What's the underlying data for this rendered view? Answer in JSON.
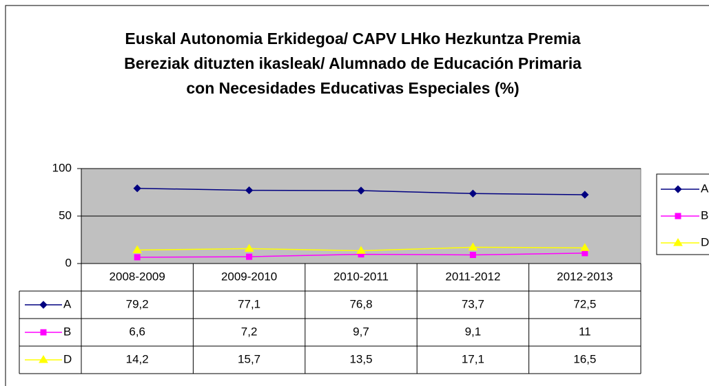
{
  "chart_data": {
    "type": "line",
    "title": "Euskal Autonomia Erkidegoa/ CAPV LHko Hezkuntza Premia Bereziak dituzten ikasleak/ Alumnado de Educación Primaria con Necesidades Educativas Especiales (%)",
    "categories": [
      "2008-2009",
      "2009-2010",
      "2010-2011",
      "2011-2012",
      "2012-2013"
    ],
    "series": [
      {
        "name": "A",
        "color": "#000080",
        "marker": "diamond",
        "values": [
          79.2,
          77.1,
          76.8,
          73.7,
          72.5
        ],
        "value_labels": [
          "79,2",
          "77,1",
          "76,8",
          "73,7",
          "72,5"
        ]
      },
      {
        "name": "B",
        "color": "#ff00ff",
        "marker": "square",
        "values": [
          6.6,
          7.2,
          9.7,
          9.1,
          11
        ],
        "value_labels": [
          "6,6",
          "7,2",
          "9,7",
          "9,1",
          "11"
        ]
      },
      {
        "name": "D",
        "color": "#ffff00",
        "marker": "triangle",
        "values": [
          14.2,
          15.7,
          13.5,
          17.1,
          16.5
        ],
        "value_labels": [
          "14,2",
          "15,7",
          "13,5",
          "17,1",
          "16,5"
        ]
      }
    ],
    "ylim": [
      0,
      100
    ],
    "yticks": [
      0,
      50,
      100
    ],
    "grid": true,
    "plot_background": "#c0c0c0",
    "legend": "right",
    "data_table": true
  }
}
